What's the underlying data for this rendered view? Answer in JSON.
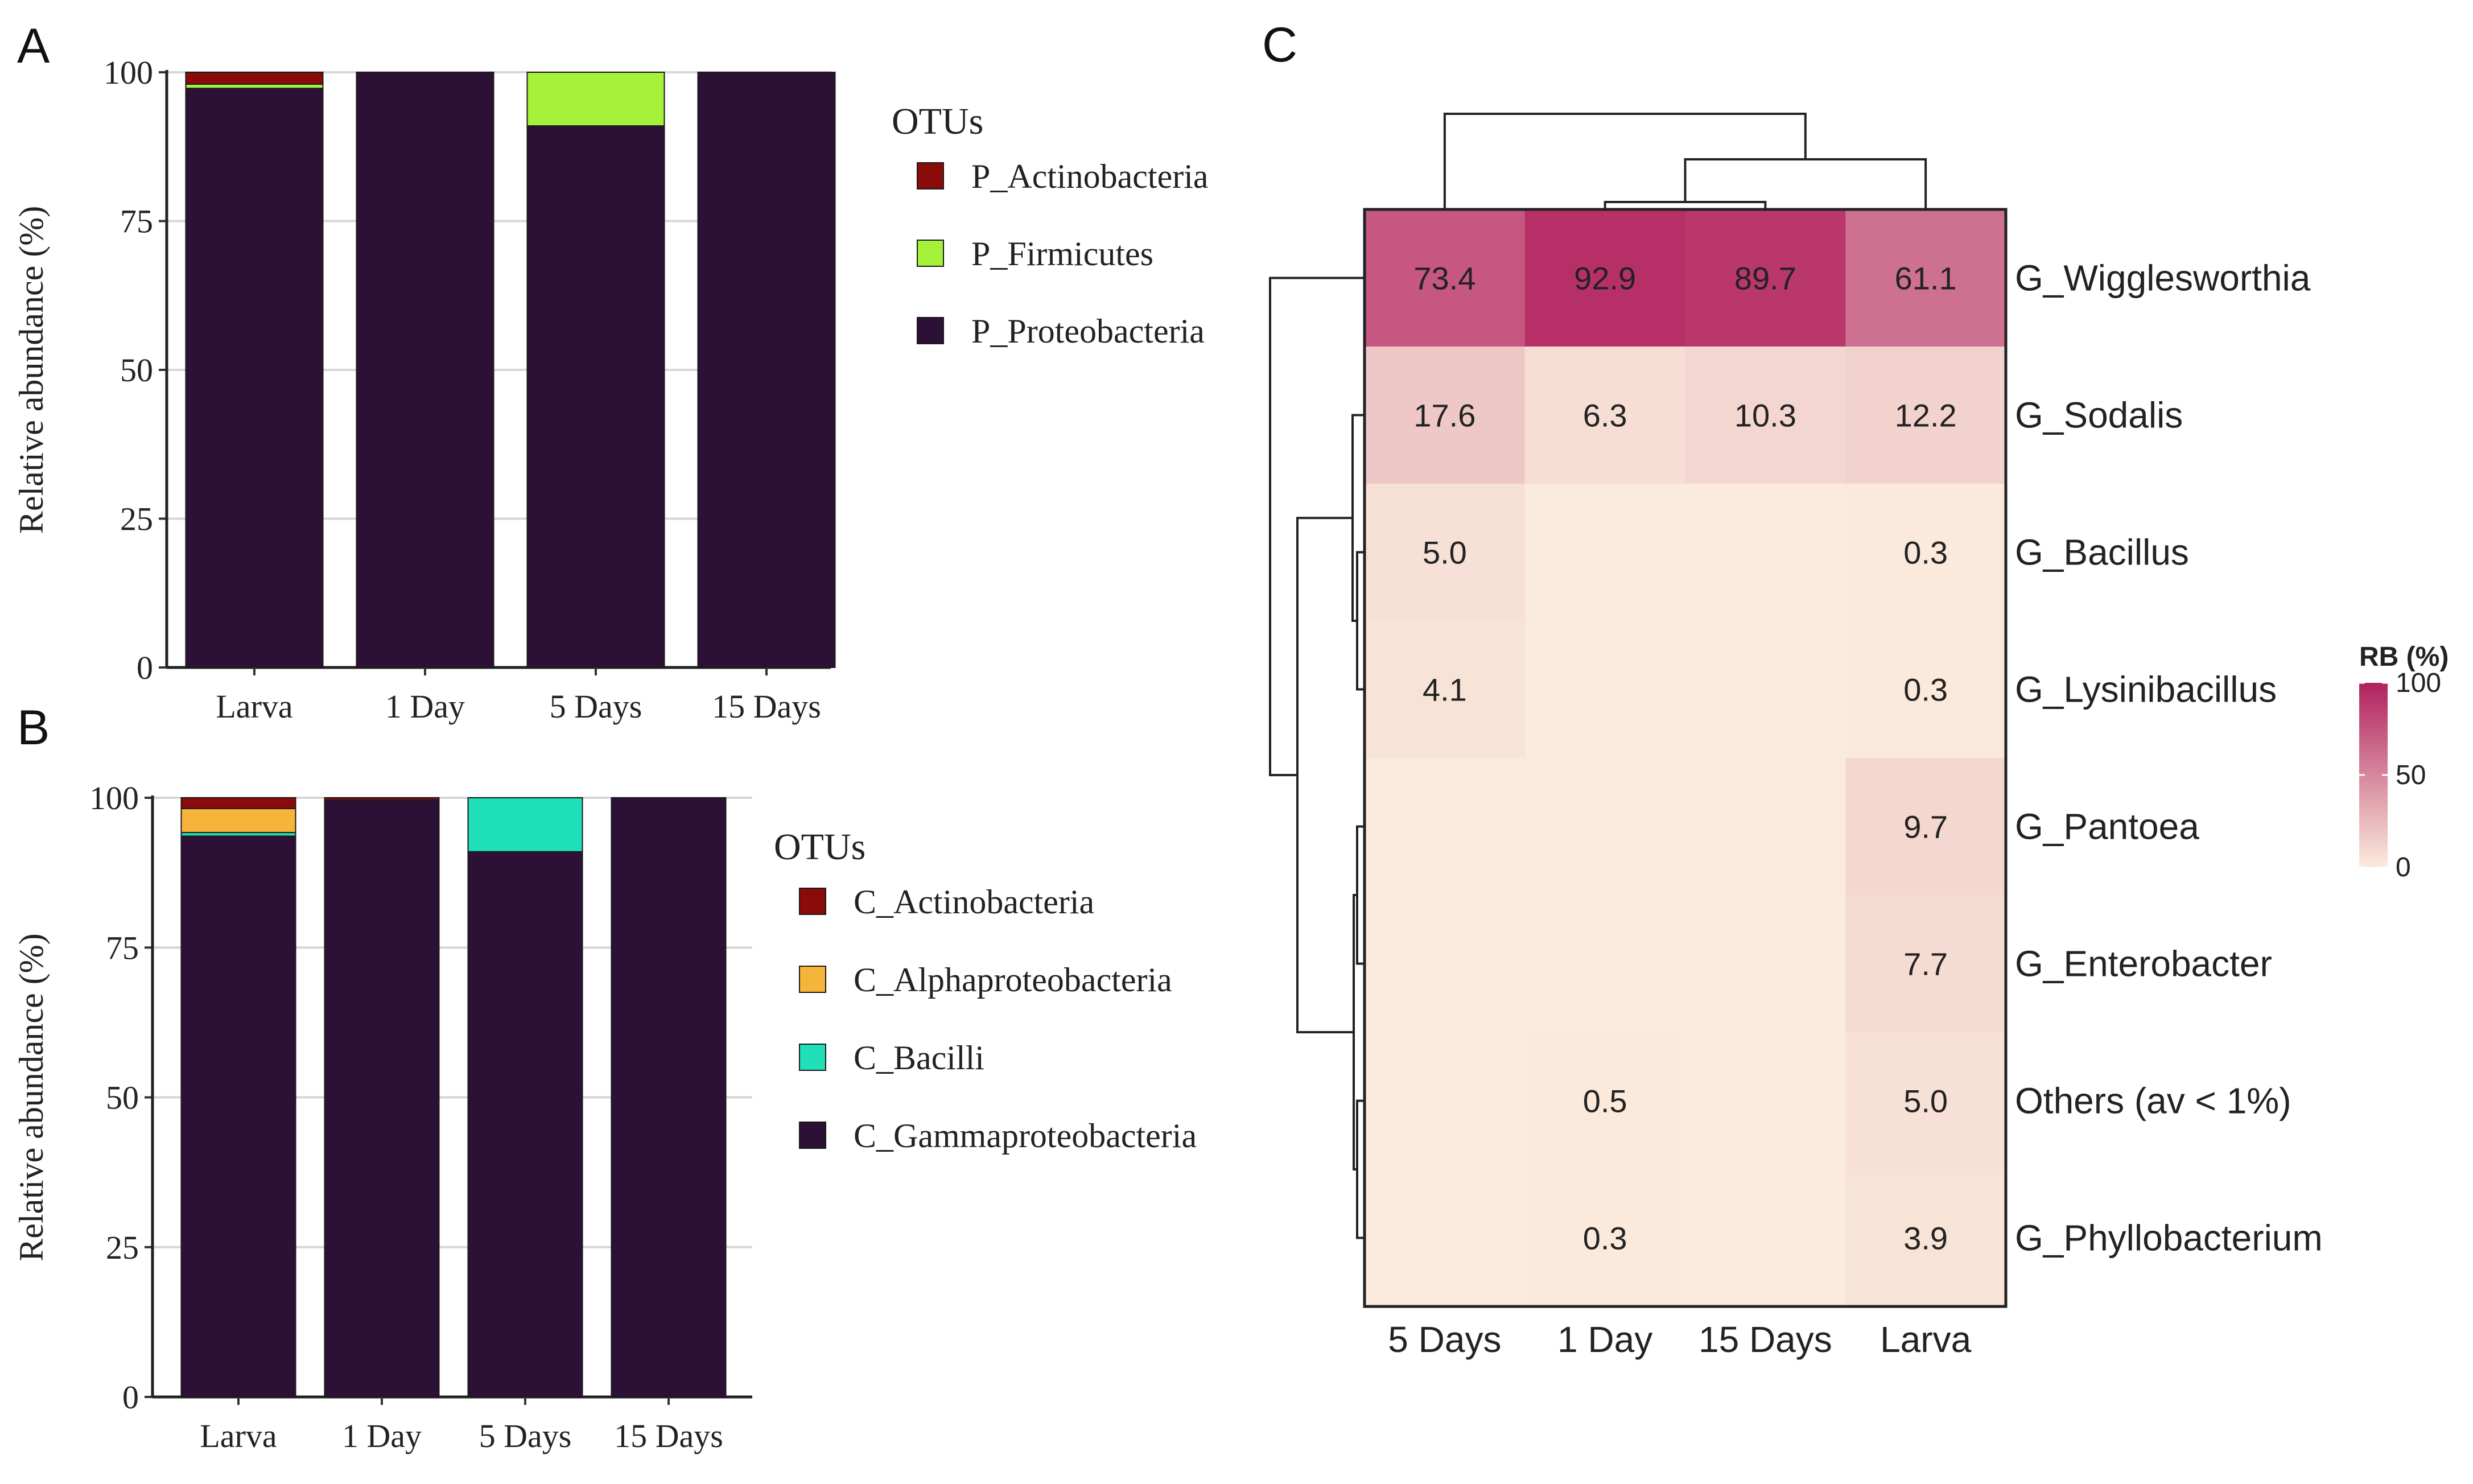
{
  "chart_data": [
    {
      "panel_label": "A",
      "type": "bar",
      "stacked": true,
      "categories": [
        "Larva",
        "1 Day",
        "5 Days",
        "15 Days"
      ],
      "ylabel": "Relative abundance (%)",
      "ylim": [
        0,
        100
      ],
      "yticks": [
        "0",
        "25",
        "50",
        "75",
        "100"
      ],
      "grid": true,
      "legend_title": "OTUs",
      "legend_position": "right",
      "series": [
        {
          "name": "P_Proteobacteria",
          "color": "#2d1035",
          "values": [
            97.3,
            100,
            91.0,
            100
          ]
        },
        {
          "name": "P_Firmicutes",
          "color": "#a6f23a",
          "values": [
            0.7,
            0,
            9.0,
            0
          ]
        },
        {
          "name": "P_Actinobacteria",
          "color": "#8b0a0a",
          "values": [
            2.0,
            0,
            0,
            0
          ]
        }
      ],
      "legend_order": [
        "P_Actinobacteria",
        "P_Firmicutes",
        "P_Proteobacteria"
      ]
    },
    {
      "panel_label": "B",
      "type": "bar",
      "stacked": true,
      "categories": [
        "Larva",
        "1 Day",
        "5 Days",
        "15 Days"
      ],
      "ylabel": "Relative abundance (%)",
      "ylim": [
        0,
        100
      ],
      "yticks": [
        "0",
        "25",
        "50",
        "75",
        "100"
      ],
      "grid": true,
      "legend_title": "OTUs",
      "legend_position": "right",
      "series": [
        {
          "name": "C_Gammaproteobacteria",
          "color": "#2d1035",
          "values": [
            93.6,
            99.6,
            91.0,
            100
          ]
        },
        {
          "name": "C_Bacilli",
          "color": "#1fe0b8",
          "values": [
            0.6,
            0,
            9.0,
            0
          ]
        },
        {
          "name": "C_Alphaproteobacteria",
          "color": "#f7b43a",
          "values": [
            4.0,
            0,
            0,
            0
          ]
        },
        {
          "name": "C_Actinobacteria",
          "color": "#8b0a0a",
          "values": [
            1.8,
            0.4,
            0,
            0
          ]
        }
      ],
      "legend_order": [
        "C_Actinobacteria",
        "C_Alphaproteobacteria",
        "C_Bacilli",
        "C_Gammaproteobacteria"
      ]
    },
    {
      "panel_label": "C",
      "type": "heatmap",
      "columns": [
        "5 Days",
        "1 Day",
        "15 Days",
        "Larva"
      ],
      "rows": [
        "G_Wigglesworthia",
        "G_Sodalis",
        "G_Bacillus",
        "G_Lysinibacillus",
        "G_Pantoea",
        "G_Enterobacter",
        "Others (av < 1%)",
        "G_Phyllobacterium"
      ],
      "values": [
        [
          73.4,
          92.9,
          89.7,
          61.1
        ],
        [
          17.6,
          6.3,
          10.3,
          12.2
        ],
        [
          5.0,
          0,
          0,
          0.3
        ],
        [
          4.1,
          0,
          0,
          0.3
        ],
        [
          0,
          0,
          0,
          9.7
        ],
        [
          0,
          0,
          0,
          7.7
        ],
        [
          0,
          0.5,
          0,
          5.0
        ],
        [
          0,
          0.3,
          0,
          3.9
        ]
      ],
      "labels": [
        [
          "73.4",
          "92.9",
          "89.7",
          "61.1"
        ],
        [
          "17.6",
          "6.3",
          "10.3",
          "12.2"
        ],
        [
          "5.0",
          "",
          "",
          "0.3"
        ],
        [
          "4.1",
          "",
          "",
          "0.3"
        ],
        [
          "",
          "",
          "",
          "9.7"
        ],
        [
          "",
          "",
          "",
          "7.7"
        ],
        [
          "",
          "0.5",
          "",
          "5.0"
        ],
        [
          "",
          "0.3",
          "",
          "3.9"
        ]
      ],
      "colorbar_title": "RB (%)",
      "colorbar_ticks": [
        "0",
        "50",
        "100"
      ],
      "color_low": "#fbebdc",
      "color_high": "#b1225e",
      "column_dendrogram": true,
      "row_dendrogram": true
    }
  ]
}
